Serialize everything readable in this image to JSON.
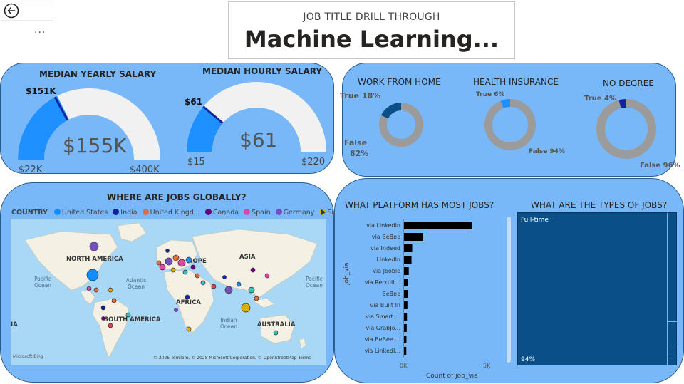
{
  "nav": {
    "back_icon": "back-arrow-icon",
    "more_icon": "ellipsis-icon",
    "more_text": "..."
  },
  "header": {
    "subtitle": "JOB TITLE DRILL THROUGH",
    "title": "Machine Learning..."
  },
  "salary": {
    "yearly": {
      "title": "MEDIAN YEARLY SALARY",
      "value": "$155K",
      "min": "$22K",
      "max": "$400K",
      "target": "$151K",
      "fraction": 0.352,
      "target_fraction": 0.341
    },
    "hourly": {
      "title": "MEDIAN HOURLY SALARY",
      "value": "$61",
      "min": "$15",
      "max": "$220",
      "target": "$61",
      "fraction": 0.224,
      "target_fraction": 0.224
    }
  },
  "donuts": [
    {
      "title": "WORK FROM HOME",
      "true_label": "True 18%",
      "false_label_1": "False",
      "false_label_2": "82%",
      "true_pct": 18
    },
    {
      "title": "HEALTH INSURANCE",
      "true_label": "True 6%",
      "false_label": "False 94%",
      "true_pct": 6
    },
    {
      "title": "NO DEGREE",
      "true_label": "True 4%",
      "false_label": "False 96%",
      "true_pct": 4
    }
  ],
  "map": {
    "title": "WHERE ARE JOBS GLOBALLY?",
    "legend_title": "COUNTRY",
    "legend": [
      {
        "name": "United States",
        "color": "#118dff"
      },
      {
        "name": "India",
        "color": "#12239e"
      },
      {
        "name": "United Kingd...",
        "color": "#e66c37"
      },
      {
        "name": "Canada",
        "color": "#6b007b"
      },
      {
        "name": "Spain",
        "color": "#e044a7"
      },
      {
        "name": "Germany",
        "color": "#744ec2"
      },
      {
        "name": "Singapore",
        "color": "#d9b300"
      }
    ],
    "next_icon": "chevron-right-icon",
    "continents": [
      "NORTH AMERICA",
      "SOUTH AMERICA",
      "AFRICA",
      "ASIA",
      "AUSTRALIA",
      "ROPE",
      "IA"
    ],
    "oceans": [
      "Pacific Ocean",
      "Atlantic Ocean",
      "Indian Ocean",
      "Pacific Ocean"
    ],
    "attribution": "© 2025 TomTom, © 2025 Microsoft Corporation, © OpenStreetMap  Terms",
    "brand": "Microsoft Bing"
  },
  "platform_chart": {
    "title": "WHAT PLATFORM HAS MOST JOBS?",
    "y_axis_title": "job_via",
    "x_axis_title": "Count of job_via",
    "x_ticks": [
      "0K",
      "5K"
    ]
  },
  "chart_data": {
    "type": "bar",
    "orientation": "horizontal",
    "categories": [
      "via LinkedIn",
      "via BeBee",
      "via Indeed",
      "LinkedIn",
      "via Jooble",
      "via Recruit...",
      "BeBee",
      "via Built In",
      "via Smart ...",
      "via GrabJo...",
      "via BeBee ...",
      "via LinkedI..."
    ],
    "values": [
      5000,
      1400,
      600,
      550,
      350,
      300,
      280,
      250,
      220,
      200,
      180,
      170
    ],
    "xlim": [
      0,
      5000
    ],
    "xlabel": "Count of job_via",
    "ylabel": "job_via",
    "bar_color": "#000000"
  },
  "types_chart": {
    "title": "WHAT ARE THE TYPES OF JOBS?",
    "top_label": "Full-time",
    "bottom_label": "94%",
    "color": "#0a4f87"
  }
}
